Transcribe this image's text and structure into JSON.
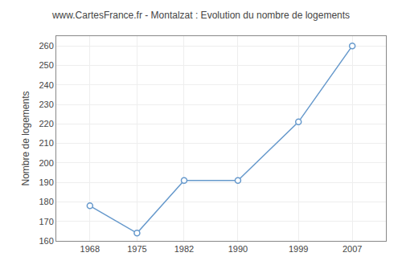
{
  "chart_data": {
    "type": "line",
    "title": "www.CartesFrance.fr - Montalzat : Evolution du nombre de logements",
    "y_label": "Nombre de logements",
    "x": [
      1968,
      1975,
      1982,
      1990,
      1999,
      2007
    ],
    "values": [
      178,
      164,
      191,
      191,
      221,
      260
    ],
    "xlim": [
      1963,
      2012
    ],
    "xticks": [
      1968,
      1975,
      1982,
      1990,
      1999,
      2007
    ],
    "ylim": [
      160,
      265
    ],
    "yticks": [
      160,
      170,
      180,
      190,
      200,
      210,
      220,
      230,
      240,
      250,
      260
    ],
    "color": "#6699cc",
    "marker": "circle",
    "grid": true
  }
}
